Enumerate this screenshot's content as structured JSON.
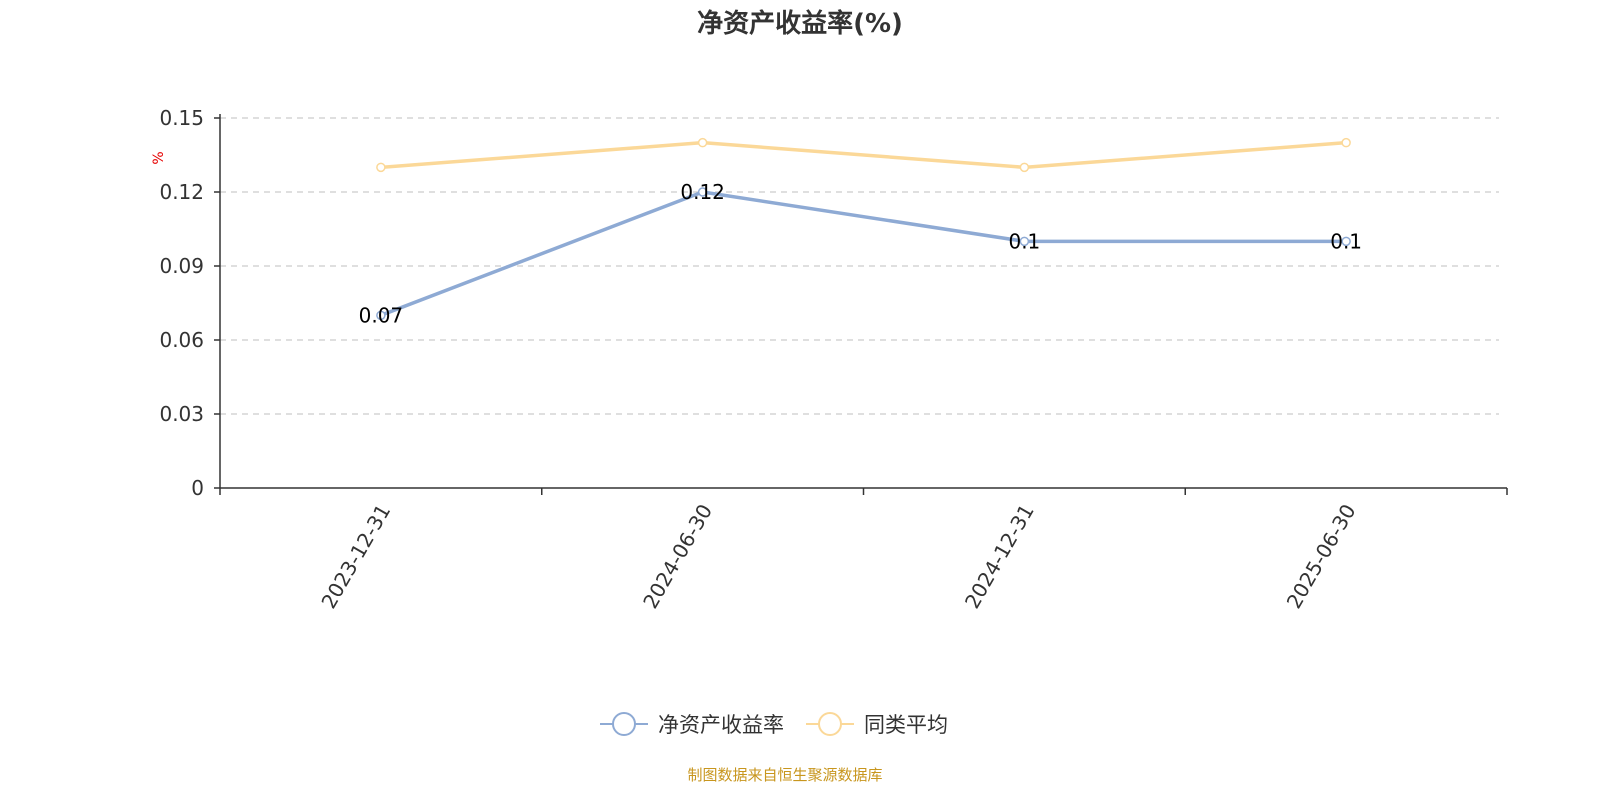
{
  "chart_data": {
    "type": "line",
    "title": "净资产收益率(%)",
    "ylabel": "%",
    "xlabel": "",
    "categories": [
      "2023-12-31",
      "2024-06-30",
      "2024-12-31",
      "2025-06-30"
    ],
    "ylim": [
      0,
      0.15
    ],
    "yticks": [
      0,
      0.03,
      0.06,
      0.09,
      0.12,
      0.15
    ],
    "ytick_labels": [
      "0",
      "0.03",
      "0.06",
      "0.09",
      "0.12",
      "0.15"
    ],
    "grid": true,
    "legend_position": "bottom",
    "series": [
      {
        "name": "净资产收益率",
        "values": [
          0.07,
          0.12,
          0.1,
          0.1
        ],
        "data_labels": [
          "0.07",
          "0.12",
          "0.1",
          "0.1"
        ],
        "color": "#8eaad4"
      },
      {
        "name": "同类平均",
        "values": [
          0.13,
          0.14,
          0.13,
          0.14
        ],
        "color": "#fbd898"
      }
    ],
    "source": "制图数据来自恒生聚源数据库"
  }
}
